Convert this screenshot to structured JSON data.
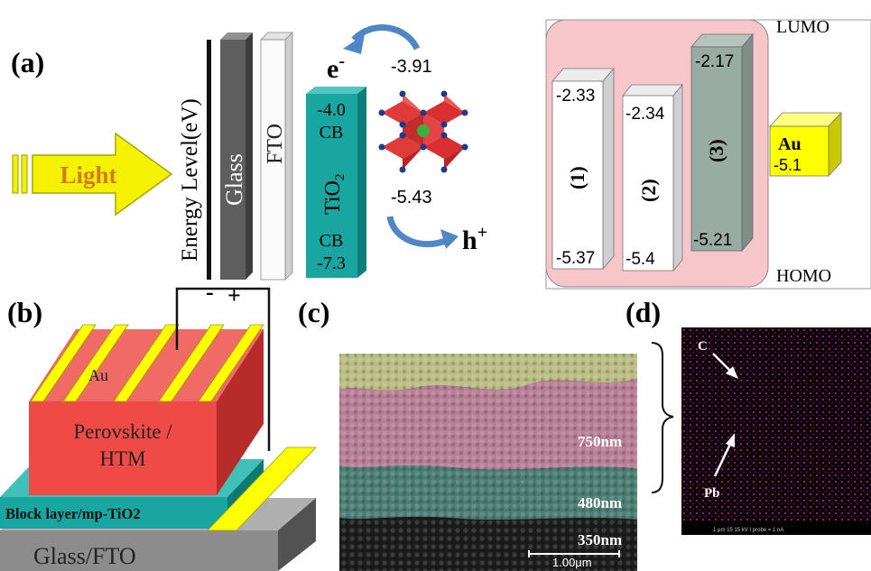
{
  "panel_labels": {
    "a": "(a)",
    "b": "(b)",
    "c": "(c)",
    "d": "(d)"
  },
  "panel_a": {
    "light": "Light",
    "energy_axis": "Energy Level(eV)",
    "glass": "Glass",
    "fto": "FTO",
    "tio2": {
      "top": "-4.0",
      "cb_top": "CB",
      "name": "TiO",
      "sub": "2",
      "cb_bottom": "CB",
      "bottom": "-7.3"
    },
    "perovskite": {
      "electron": "e",
      "electron_sup": "-",
      "lumo": "-3.91",
      "homo": "-5.43",
      "hole": "h",
      "hole_sup": "+"
    },
    "htm": {
      "lumo_label": "LUMO",
      "homo_label": "HOMO",
      "materials": [
        {
          "label": "(1)",
          "lumo": "-2.33",
          "homo": "-5.37"
        },
        {
          "label": "(2)",
          "lumo": "-2.34",
          "homo": "-5.4"
        },
        {
          "label": "(3)",
          "lumo": "-2.17",
          "homo": "-5.21"
        }
      ],
      "au": {
        "name": "Au",
        "value": "-5.1"
      }
    }
  },
  "panel_b": {
    "minus": "-",
    "plus": "+",
    "au": "Au",
    "perovskite_line1": "Perovskite /",
    "perovskite_line2": "HTM",
    "block_layer": "Block layer/mp-TiO2",
    "glass_fto": "Glass/FTO"
  },
  "panel_c": {
    "thickness_1": "750nm",
    "thickness_2": "480nm",
    "thickness_3": "350nm",
    "scale_bar": "1.00μm"
  },
  "panel_d": {
    "carbon": "C",
    "lead": "Pb",
    "footer": "1 μm   15 15 kV   I probe = 1 nA"
  },
  "colors": {
    "gold": "#ffff00",
    "perovskite_red": "#ef4a46",
    "teal": "#1aa6a0",
    "htm_panel": "#f6c6cb",
    "arrow_blue": "#4f86c6"
  }
}
